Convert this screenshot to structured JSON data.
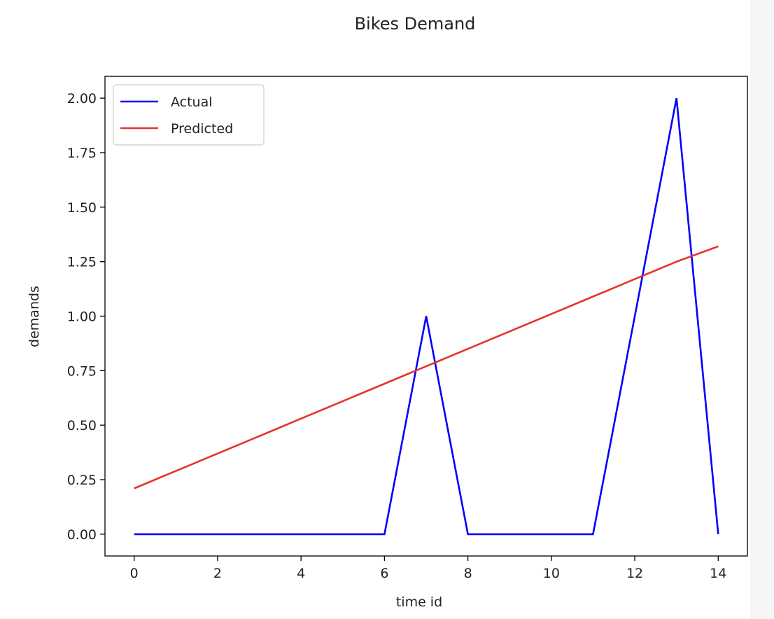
{
  "chart_data": {
    "type": "line",
    "title": "Bikes Demand",
    "xlabel": "time id",
    "ylabel": "demands",
    "xlim": [
      -0.7,
      14.7
    ],
    "ylim": [
      -0.1,
      2.1
    ],
    "xticks": [
      0,
      2,
      4,
      6,
      8,
      10,
      12,
      14
    ],
    "xtick_labels": [
      "0",
      "2",
      "4",
      "6",
      "8",
      "10",
      "12",
      "14"
    ],
    "yticks": [
      0,
      0.25,
      0.5,
      0.75,
      1.0,
      1.25,
      1.5,
      1.75,
      2.0
    ],
    "ytick_labels": [
      "0.00",
      "0.25",
      "0.50",
      "0.75",
      "1.00",
      "1.25",
      "1.50",
      "1.75",
      "2.00"
    ],
    "grid": false,
    "legend_position": "top-left",
    "x": [
      0,
      1,
      2,
      3,
      4,
      5,
      6,
      7,
      8,
      9,
      10,
      11,
      12,
      13,
      14
    ],
    "series": [
      {
        "name": "Actual",
        "color": "#0000ff",
        "values": [
          0,
          0,
          0,
          0,
          0,
          0,
          0,
          1,
          0,
          0,
          0,
          0,
          1,
          2,
          0
        ]
      },
      {
        "name": "Predicted",
        "color": "#e8322a",
        "values": [
          0.21,
          0.29,
          0.37,
          0.45,
          0.53,
          0.61,
          0.69,
          0.77,
          0.85,
          0.93,
          1.01,
          1.09,
          1.17,
          1.25,
          1.32
        ]
      }
    ]
  }
}
